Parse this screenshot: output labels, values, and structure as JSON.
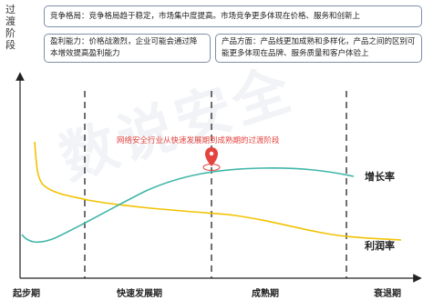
{
  "y_axis_label": "过渡阶段",
  "notes": {
    "competition": "竞争格局：竞争格局趋于稳定，市场集中度提高。市场竞争更多体现在价格、服务和创新上",
    "profit": "盈利能力：价格战激烈，企业可能会通过降本增效提高盈利能力",
    "product": "产品方面：产品线更加成熟和多样化，产品之间的区别可能更多体现在品牌、服务质量和客户体验上"
  },
  "transition_label": "网络安全行业从快速发展期到成熟期的过渡阶段",
  "phases": [
    "起步期",
    "快速发展期",
    "成熟期",
    "衰退期"
  ],
  "series": {
    "growth": {
      "name": "增长率",
      "color": "#3fb6a8"
    },
    "profit": {
      "name": "利润率",
      "color": "#f2c200"
    }
  },
  "watermark": "数说安全",
  "colors": {
    "marker": "#e4443f",
    "note_border": "#7f8ea8",
    "axis": "#222222"
  }
}
